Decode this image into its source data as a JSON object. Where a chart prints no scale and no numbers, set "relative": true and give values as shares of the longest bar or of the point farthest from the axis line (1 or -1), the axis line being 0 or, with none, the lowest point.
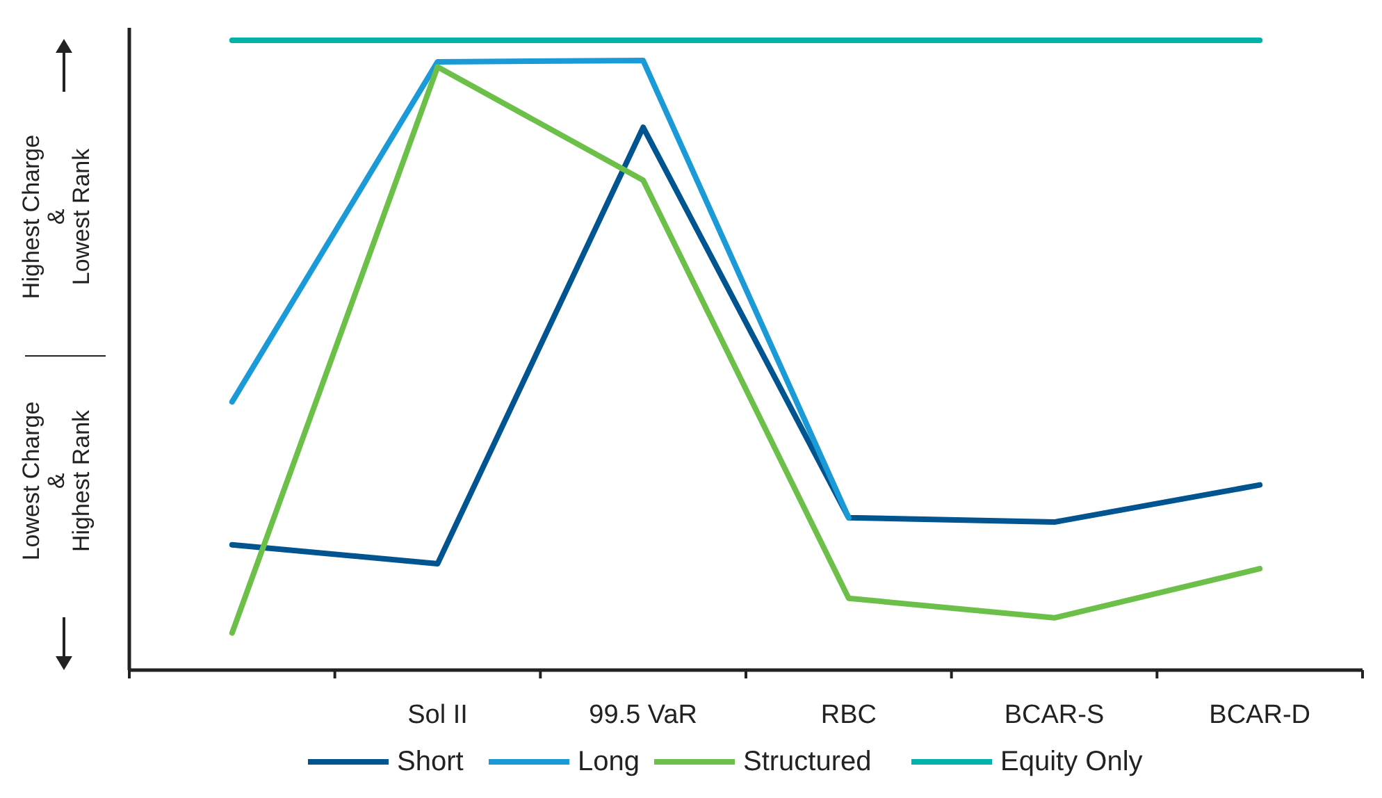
{
  "chart_data": {
    "type": "line",
    "relative": true,
    "categories": [
      null,
      "Sol II",
      "99.5 VaR",
      "RBC",
      "BCAR-S",
      "BCAR-D"
    ],
    "series": [
      {
        "name": "Short",
        "color": "#00548f",
        "values": [
          0.199,
          0.169,
          0.862,
          0.242,
          0.235,
          0.294
        ]
      },
      {
        "name": "Long",
        "color": "#1a9ad6",
        "values": [
          0.426,
          0.966,
          0.968,
          0.242,
          null,
          null
        ]
      },
      {
        "name": "Structured",
        "color": "#6cc04a",
        "values": [
          0.059,
          0.958,
          0.778,
          0.114,
          0.083,
          0.161
        ]
      },
      {
        "name": "Equity Only",
        "color": "#00b2a9",
        "values": [
          1,
          1,
          1,
          1,
          1,
          1
        ]
      }
    ],
    "annotations": [
      "Highest Charge\n&\nLowest Rank",
      "Lowest Charge\n&\nHighest Rank"
    ],
    "legend": "bottom",
    "marker": "none",
    "line_style": "solid"
  }
}
